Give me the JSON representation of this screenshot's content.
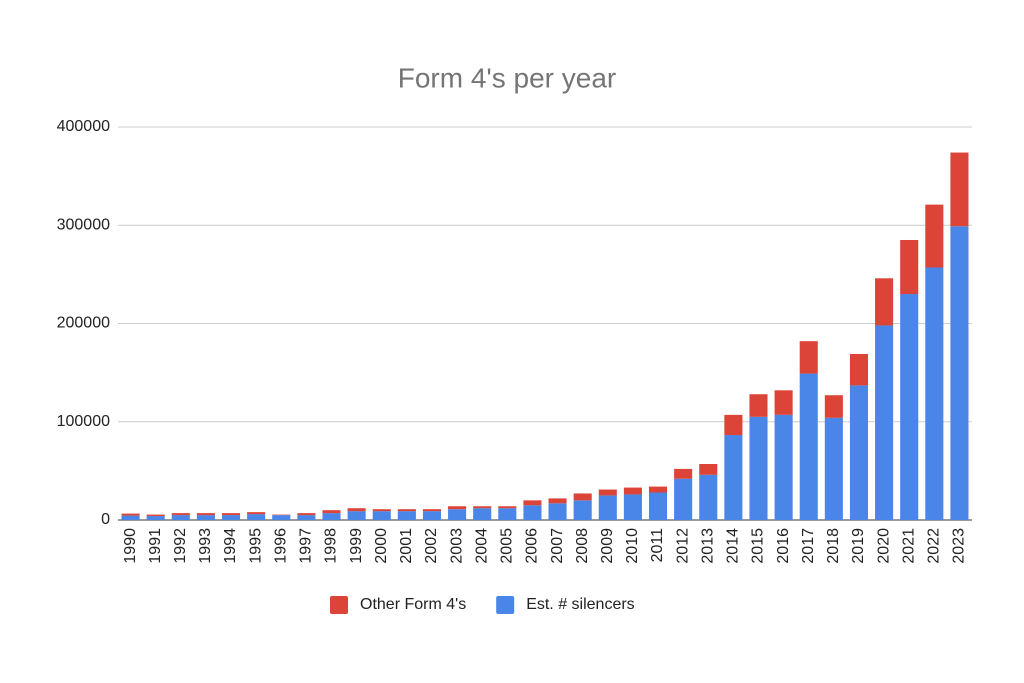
{
  "chart_data": {
    "type": "stacked_bar",
    "title": "Form 4's per year",
    "categories": [
      "1990",
      "1991",
      "1992",
      "1993",
      "1994",
      "1995",
      "1996",
      "1997",
      "1998",
      "1999",
      "2000",
      "2001",
      "2002",
      "2003",
      "2004",
      "2005",
      "2006",
      "2007",
      "2008",
      "2009",
      "2010",
      "2011",
      "2012",
      "2013",
      "2014",
      "2015",
      "2016",
      "2017",
      "2018",
      "2019",
      "2020",
      "2021",
      "2022",
      "2023"
    ],
    "series": [
      {
        "name": "Other Form 4's",
        "color": "#db4437",
        "values": [
          2000,
          1500,
          2000,
          2000,
          2000,
          2000,
          500,
          2000,
          3000,
          3000,
          2000,
          2000,
          2000,
          3000,
          2000,
          2000,
          5000,
          5000,
          7000,
          6000,
          7000,
          6000,
          10000,
          11000,
          20500,
          23000,
          25000,
          33000,
          23000,
          32000,
          48000,
          55000,
          64000,
          75000
        ]
      },
      {
        "name": "Est. # silencers",
        "color": "#4a86e8",
        "values": [
          4500,
          4000,
          5000,
          5000,
          5000,
          6000,
          5000,
          5000,
          7000,
          9000,
          9000,
          9000,
          9000,
          11000,
          12000,
          12000,
          15000,
          17000,
          20000,
          25000,
          26000,
          28000,
          42000,
          46000,
          86500,
          105000,
          107000,
          149000,
          104000,
          137000,
          198000,
          230000,
          257000,
          299000
        ]
      }
    ],
    "ylim": [
      0,
      400000
    ],
    "yticks": [
      0,
      100000,
      200000,
      300000,
      400000
    ],
    "grid": true,
    "legend": "bottom"
  }
}
